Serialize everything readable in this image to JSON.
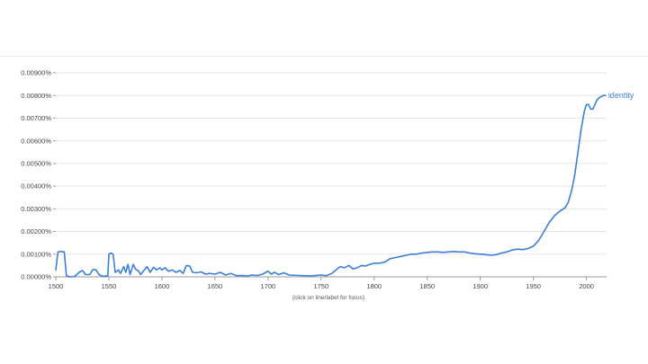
{
  "chart_data": {
    "type": "line",
    "title": "",
    "xlabel": "",
    "ylabel": "",
    "hint": "(click on line/label for focus)",
    "xlim": [
      1500,
      2019
    ],
    "ylim": [
      0,
      0.009
    ],
    "x_ticks": [
      1500,
      1550,
      1600,
      1650,
      1700,
      1750,
      1800,
      1850,
      1900,
      1950,
      2000
    ],
    "y_ticks": [
      {
        "value": 0.0,
        "label": "0.00000%"
      },
      {
        "value": 0.001,
        "label": "0.00100%"
      },
      {
        "value": 0.002,
        "label": "0.00200%"
      },
      {
        "value": 0.003,
        "label": "0.00300%"
      },
      {
        "value": 0.004,
        "label": "0.00400%"
      },
      {
        "value": 0.005,
        "label": "0.00500%"
      },
      {
        "value": 0.006,
        "label": "0.00600%"
      },
      {
        "value": 0.007,
        "label": "0.00700%"
      },
      {
        "value": 0.008,
        "label": "0.00800%"
      },
      {
        "value": 0.009,
        "label": "0.00900%"
      }
    ],
    "grid": true,
    "series": [
      {
        "name": "identity",
        "color": "#3d7fd6",
        "points": [
          [
            1500,
            0.0003
          ],
          [
            1502,
            0.0011
          ],
          [
            1505,
            0.00112
          ],
          [
            1508,
            0.0011
          ],
          [
            1510,
            5e-05
          ],
          [
            1513,
            0.0
          ],
          [
            1518,
            2e-05
          ],
          [
            1522,
            0.0002
          ],
          [
            1525,
            0.00028
          ],
          [
            1528,
            0.0001
          ],
          [
            1532,
            0.0001
          ],
          [
            1535,
            0.00032
          ],
          [
            1538,
            0.0003
          ],
          [
            1541,
            8e-05
          ],
          [
            1545,
            2e-05
          ],
          [
            1549,
            5e-05
          ],
          [
            1550,
            0.001
          ],
          [
            1552,
            0.00105
          ],
          [
            1554,
            0.001
          ],
          [
            1556,
            0.0002
          ],
          [
            1559,
            0.0003
          ],
          [
            1561,
            0.00015
          ],
          [
            1564,
            0.00045
          ],
          [
            1566,
            0.0002
          ],
          [
            1568,
            0.00055
          ],
          [
            1570,
            0.0001
          ],
          [
            1573,
            0.00055
          ],
          [
            1575,
            0.00035
          ],
          [
            1578,
            0.00025
          ],
          [
            1580,
            0.0001
          ],
          [
            1583,
            0.00028
          ],
          [
            1586,
            0.00045
          ],
          [
            1589,
            0.0002
          ],
          [
            1592,
            0.00042
          ],
          [
            1595,
            0.0003
          ],
          [
            1598,
            0.0004
          ],
          [
            1600,
            0.0003
          ],
          [
            1603,
            0.0004
          ],
          [
            1606,
            0.00025
          ],
          [
            1610,
            0.0003
          ],
          [
            1613,
            0.0002
          ],
          [
            1617,
            0.00028
          ],
          [
            1620,
            0.00015
          ],
          [
            1623,
            0.0005
          ],
          [
            1626,
            0.00048
          ],
          [
            1629,
            0.0002
          ],
          [
            1633,
            0.00018
          ],
          [
            1637,
            0.00022
          ],
          [
            1641,
            0.00012
          ],
          [
            1645,
            0.00015
          ],
          [
            1650,
            0.00012
          ],
          [
            1655,
            0.0002
          ],
          [
            1660,
            8e-05
          ],
          [
            1665,
            0.00015
          ],
          [
            1670,
            5e-05
          ],
          [
            1675,
            6e-05
          ],
          [
            1680,
            4e-05
          ],
          [
            1685,
            8e-05
          ],
          [
            1690,
            6e-05
          ],
          [
            1695,
            0.00012
          ],
          [
            1700,
            0.00025
          ],
          [
            1703,
            0.00012
          ],
          [
            1706,
            0.0002
          ],
          [
            1710,
            0.0001
          ],
          [
            1715,
            0.00018
          ],
          [
            1720,
            8e-05
          ],
          [
            1730,
            6e-05
          ],
          [
            1740,
            4e-05
          ],
          [
            1750,
            8e-05
          ],
          [
            1755,
            5e-05
          ],
          [
            1760,
            0.00015
          ],
          [
            1764,
            0.0003
          ],
          [
            1768,
            0.00045
          ],
          [
            1772,
            0.0004
          ],
          [
            1776,
            0.0005
          ],
          [
            1780,
            0.00035
          ],
          [
            1784,
            0.0004
          ],
          [
            1788,
            0.0005
          ],
          [
            1792,
            0.00048
          ],
          [
            1796,
            0.00055
          ],
          [
            1800,
            0.0006
          ],
          [
            1805,
            0.0006
          ],
          [
            1810,
            0.00065
          ],
          [
            1815,
            0.0008
          ],
          [
            1820,
            0.00085
          ],
          [
            1825,
            0.0009
          ],
          [
            1830,
            0.00095
          ],
          [
            1835,
            0.001
          ],
          [
            1840,
            0.001
          ],
          [
            1845,
            0.00105
          ],
          [
            1850,
            0.00108
          ],
          [
            1855,
            0.0011
          ],
          [
            1860,
            0.0011
          ],
          [
            1865,
            0.00108
          ],
          [
            1870,
            0.0011
          ],
          [
            1875,
            0.00112
          ],
          [
            1880,
            0.0011
          ],
          [
            1885,
            0.0011
          ],
          [
            1890,
            0.00105
          ],
          [
            1895,
            0.00102
          ],
          [
            1900,
            0.001
          ],
          [
            1905,
            0.00098
          ],
          [
            1910,
            0.00095
          ],
          [
            1915,
            0.00098
          ],
          [
            1920,
            0.00105
          ],
          [
            1925,
            0.0011
          ],
          [
            1930,
            0.00118
          ],
          [
            1935,
            0.00122
          ],
          [
            1940,
            0.0012
          ],
          [
            1945,
            0.00125
          ],
          [
            1950,
            0.00135
          ],
          [
            1955,
            0.0016
          ],
          [
            1960,
            0.002
          ],
          [
            1965,
            0.0024
          ],
          [
            1970,
            0.0027
          ],
          [
            1975,
            0.0029
          ],
          [
            1980,
            0.00305
          ],
          [
            1983,
            0.0033
          ],
          [
            1986,
            0.0038
          ],
          [
            1989,
            0.0045
          ],
          [
            1992,
            0.0055
          ],
          [
            1995,
            0.0065
          ],
          [
            1998,
            0.0073
          ],
          [
            2000,
            0.0076
          ],
          [
            2002,
            0.0076
          ],
          [
            2004,
            0.0074
          ],
          [
            2006,
            0.0074
          ],
          [
            2008,
            0.0076
          ],
          [
            2010,
            0.0078
          ],
          [
            2012,
            0.0079
          ],
          [
            2014,
            0.00795
          ],
          [
            2016,
            0.008
          ],
          [
            2018,
            0.008
          ]
        ]
      }
    ]
  }
}
